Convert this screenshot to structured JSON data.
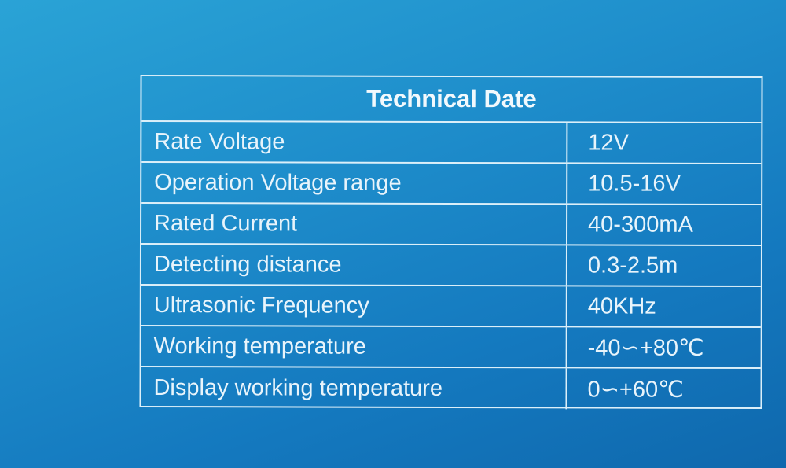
{
  "table": {
    "title": "Technical Date",
    "rows": [
      {
        "label": "Rate Voltage",
        "value": "12V"
      },
      {
        "label": "Operation Voltage range",
        "value": "10.5-16V"
      },
      {
        "label": "Rated Current",
        "value": "40-300mA"
      },
      {
        "label": "Detecting distance",
        "value": "0.3-2.5m"
      },
      {
        "label": "Ultrasonic Frequency",
        "value": "40KHz"
      },
      {
        "label": "Working temperature",
        "value": "-40∽+80℃"
      },
      {
        "label": "Display working temperature",
        "value": "0∽+60℃"
      }
    ]
  },
  "colors": {
    "background": "#1a85c6",
    "lines": "#dbeff9"
  }
}
